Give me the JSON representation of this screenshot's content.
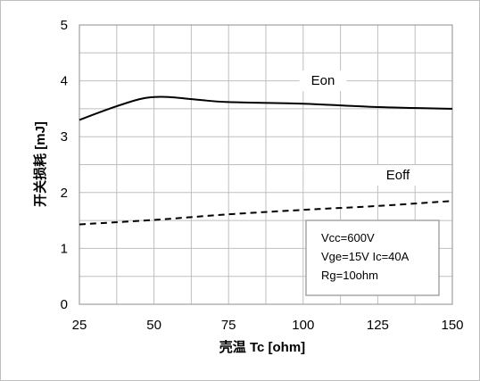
{
  "chart_data": {
    "type": "line",
    "title": "",
    "xlabel": "壳温 Tc [ohm]",
    "ylabel": "开关损耗 [mJ]",
    "xlim": [
      25,
      150
    ],
    "ylim": [
      0,
      5
    ],
    "xticks": [
      25,
      50,
      75,
      100,
      125,
      150
    ],
    "yticks": [
      0,
      1,
      2,
      3,
      4,
      5
    ],
    "grid": true,
    "series": [
      {
        "name": "Eon",
        "style": "solid",
        "color": "#000000",
        "x": [
          25,
          35,
          45,
          50,
          55,
          65,
          75,
          100,
          125,
          150
        ],
        "y": [
          3.3,
          3.5,
          3.67,
          3.71,
          3.71,
          3.66,
          3.62,
          3.59,
          3.53,
          3.5
        ]
      },
      {
        "name": "Eoff",
        "style": "dashed",
        "color": "#000000",
        "x": [
          25,
          50,
          75,
          100,
          125,
          150
        ],
        "y": [
          1.43,
          1.51,
          1.61,
          1.69,
          1.76,
          1.85
        ]
      }
    ],
    "annotations": {
      "conditions": [
        "Vcc=600V",
        "Vge=15V Ic=40A",
        "Rg=10ohm"
      ]
    }
  }
}
